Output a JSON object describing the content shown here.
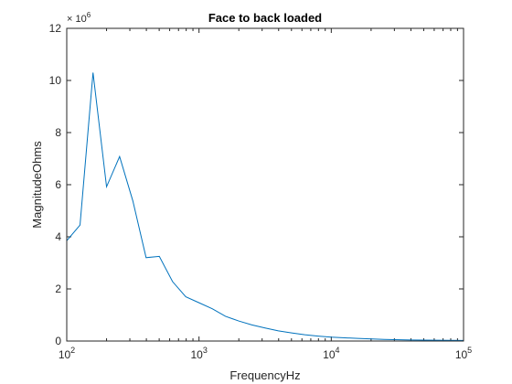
{
  "chart_data": {
    "type": "line",
    "title": "Face to back loaded",
    "xlabel": "FrequencyHz",
    "ylabel": "MagnitudeOhms",
    "xscale": "log",
    "xlim": [
      100,
      100000
    ],
    "ylim": [
      0,
      12
    ],
    "y_multiplier_label": "× 10^6",
    "y_multiplier_base": "× 10",
    "y_multiplier_exp": "6",
    "x_ticks": [
      {
        "value": 100,
        "base": "10",
        "exp": "2"
      },
      {
        "value": 1000,
        "base": "10",
        "exp": "3"
      },
      {
        "value": 10000,
        "base": "10",
        "exp": "4"
      },
      {
        "value": 100000,
        "base": "10",
        "exp": "5"
      }
    ],
    "y_ticks": [
      0,
      2,
      4,
      6,
      8,
      10,
      12
    ],
    "grid": false,
    "line_color": "#0072BD",
    "series": [
      {
        "x": [
          100,
          126,
          158,
          200,
          251,
          316,
          398,
          501,
          631,
          794,
          1000,
          1259,
          1585,
          1995,
          2512,
          3162,
          3981,
          5012,
          6310,
          7943,
          10000,
          15849,
          25119,
          39811,
          63096,
          100000
        ],
        "y": [
          3.85,
          4.45,
          10.3,
          5.92,
          7.08,
          5.38,
          3.2,
          3.25,
          2.28,
          1.7,
          1.47,
          1.24,
          0.95,
          0.77,
          0.62,
          0.5,
          0.39,
          0.31,
          0.24,
          0.19,
          0.15,
          0.1,
          0.06,
          0.04,
          0.03,
          0.02
        ]
      }
    ]
  }
}
